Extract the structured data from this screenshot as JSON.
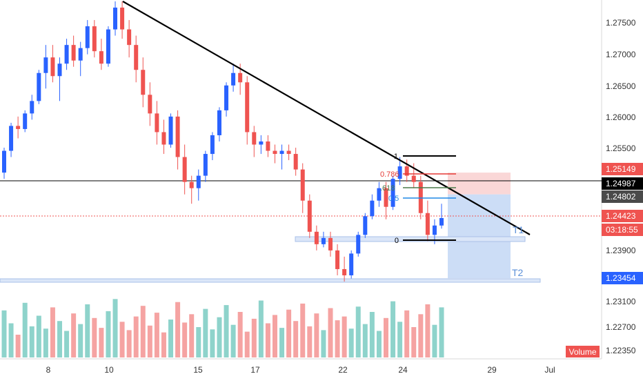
{
  "chart_data": {
    "type": "candlestick",
    "instrument_note": "",
    "colors": {
      "up": "#26a69a",
      "down": "#ef5350",
      "up_candle": "#2962ff",
      "down_candle": "#ef5350",
      "volume_up": "#8ed3cb",
      "volume_down": "#f5a3a2",
      "trendline": "#000000",
      "fib_0": "#000000",
      "fib_05": "#1e88e5",
      "fib_618": "#4a7a4a",
      "fib_786": "#e53935",
      "fib_1": "#000000",
      "target_zone": "#c7d9f5",
      "risk_zone": "#f9d3d3",
      "support_band": "#dbe6f8"
    },
    "x_ticks": [
      "8",
      "10",
      "15",
      "17",
      "22",
      "24",
      "29",
      "Jul"
    ],
    "y_ticks": [
      "1.27500",
      "1.27000",
      "1.26500",
      "1.26000",
      "1.25500",
      "1.23900",
      "1.23100",
      "1.22700",
      "1.22350"
    ],
    "ylim": [
      1.2215,
      1.2782
    ],
    "price_labels": [
      {
        "text": "1.25149",
        "value": 1.25149,
        "color": "#ef5350",
        "textColor": "#ffffff"
      },
      {
        "text": "1.24987",
        "value": 1.24987,
        "color": "#000000",
        "textColor": "#ffffff"
      },
      {
        "text": "1.24802",
        "value": 1.24802,
        "color": "#4a4a4a",
        "textColor": "#ffffff"
      },
      {
        "text": "1.24423",
        "value": 1.24423,
        "color": "#ef5350",
        "textColor": "#ffffff"
      },
      {
        "text": "03:18:55",
        "value": 1.24265,
        "color": "#ef5350",
        "textColor": "#ffffff"
      },
      {
        "text": "1.23454",
        "value": 1.23454,
        "color": "#2962ff",
        "textColor": "#ffffff"
      }
    ],
    "fib_levels": [
      {
        "label": "1",
        "value": 1.2536
      },
      {
        "label": "0.786",
        "value": 1.2508
      },
      {
        "label": ".618",
        "value": 1.2493
      },
      {
        "label": "0.5",
        "value": 1.2477
      },
      {
        "label": "0",
        "value": 1.2401
      }
    ],
    "annotations": [
      {
        "text": "T1"
      },
      {
        "text": "T2"
      },
      {
        "text": "Volume"
      }
    ],
    "series": [
      {
        "name": "",
        "values": [
          [
            1.2515,
            1.2555,
            1.2505,
            1.255
          ],
          [
            1.255,
            1.2595,
            1.254,
            1.259
          ],
          [
            1.259,
            1.2605,
            1.257,
            1.2585
          ],
          [
            1.2585,
            1.2615,
            1.258,
            1.261
          ],
          [
            1.261,
            1.264,
            1.26,
            1.263
          ],
          [
            1.263,
            1.268,
            1.2625,
            1.2675
          ],
          [
            1.2675,
            1.272,
            1.265,
            1.27
          ],
          [
            1.27,
            1.272,
            1.266,
            1.267
          ],
          [
            1.267,
            1.27,
            1.263,
            1.269
          ],
          [
            1.269,
            1.273,
            1.268,
            1.272
          ],
          [
            1.272,
            1.2735,
            1.2685,
            1.2695
          ],
          [
            1.2695,
            1.2725,
            1.267,
            1.2715
          ],
          [
            1.2715,
            1.276,
            1.2705,
            1.275
          ],
          [
            1.275,
            1.276,
            1.27,
            1.271
          ],
          [
            1.271,
            1.273,
            1.268,
            1.269
          ],
          [
            1.269,
            1.275,
            1.2685,
            1.2745
          ],
          [
            1.2745,
            1.279,
            1.2735,
            1.278
          ],
          [
            1.278,
            1.279,
            1.273,
            1.2745
          ],
          [
            1.2745,
            1.276,
            1.27,
            1.272
          ],
          [
            1.272,
            1.2735,
            1.266,
            1.268
          ],
          [
            1.268,
            1.27,
            1.262,
            1.264
          ],
          [
            1.264,
            1.266,
            1.259,
            1.261
          ],
          [
            1.261,
            1.263,
            1.256,
            1.258
          ],
          [
            1.258,
            1.26,
            1.2545,
            1.256
          ],
          [
            1.256,
            1.261,
            1.2555,
            1.2605
          ],
          [
            1.2605,
            1.2615,
            1.252,
            1.254
          ],
          [
            1.254,
            1.256,
            1.248,
            1.25
          ],
          [
            1.25,
            1.251,
            1.2465,
            1.249
          ],
          [
            1.249,
            1.252,
            1.247,
            1.251
          ],
          [
            1.251,
            1.255,
            1.25,
            1.2545
          ],
          [
            1.2545,
            1.258,
            1.2535,
            1.2575
          ],
          [
            1.2575,
            1.262,
            1.2565,
            1.2615
          ],
          [
            1.2615,
            1.266,
            1.2605,
            1.2655
          ],
          [
            1.2655,
            1.269,
            1.2645,
            1.2675
          ],
          [
            1.2675,
            1.269,
            1.264,
            1.266
          ],
          [
            1.266,
            1.267,
            1.256,
            1.258
          ],
          [
            1.258,
            1.259,
            1.254,
            1.256
          ],
          [
            1.256,
            1.2575,
            1.2545,
            1.2565
          ],
          [
            1.2565,
            1.2575,
            1.254,
            1.255
          ],
          [
            1.255,
            1.256,
            1.253,
            1.2545
          ],
          [
            1.2545,
            1.256,
            1.252,
            1.255
          ],
          [
            1.255,
            1.256,
            1.2535,
            1.2545
          ],
          [
            1.2545,
            1.2555,
            1.251,
            1.252
          ],
          [
            1.252,
            1.253,
            1.245,
            1.247
          ],
          [
            1.247,
            1.248,
            1.241,
            1.242
          ],
          [
            1.242,
            1.243,
            1.239,
            1.24
          ],
          [
            1.24,
            1.242,
            1.2395,
            1.241
          ],
          [
            1.241,
            1.242,
            1.238,
            1.239
          ],
          [
            1.239,
            1.24,
            1.235,
            1.236
          ],
          [
            1.236,
            1.238,
            1.234,
            1.235
          ],
          [
            1.235,
            1.239,
            1.2345,
            1.2385
          ],
          [
            1.2385,
            1.242,
            1.238,
            1.2415
          ],
          [
            1.2415,
            1.245,
            1.241,
            1.2445
          ],
          [
            1.2445,
            1.248,
            1.244,
            1.247
          ],
          [
            1.247,
            1.25,
            1.246,
            1.249
          ],
          [
            1.249,
            1.25,
            1.244,
            1.246
          ],
          [
            1.246,
            1.251,
            1.2455,
            1.2505
          ],
          [
            1.2505,
            1.254,
            1.2495,
            1.2525
          ],
          [
            1.2525,
            1.2536,
            1.25,
            1.251
          ],
          [
            1.251,
            1.253,
            1.249,
            1.25
          ],
          [
            1.25,
            1.251,
            1.244,
            1.245
          ],
          [
            1.245,
            1.247,
            1.2405,
            1.2415
          ],
          [
            1.2415,
            1.244,
            1.24,
            1.243
          ],
          [
            1.243,
            1.2465,
            1.2425,
            1.2442
          ]
        ]
      },
      {
        "name": "Volume",
        "values": [
          0.62,
          0.45,
          0.3,
          0.72,
          0.41,
          0.55,
          0.38,
          0.66,
          0.48,
          0.35,
          0.58,
          0.44,
          0.7,
          0.52,
          0.39,
          0.61,
          0.77,
          0.47,
          0.36,
          0.54,
          0.68,
          0.42,
          0.59,
          0.33,
          0.5,
          0.73,
          0.46,
          0.57,
          0.4,
          0.64,
          0.37,
          0.53,
          0.69,
          0.43,
          0.6,
          0.34,
          0.51,
          0.75,
          0.45,
          0.56,
          0.39,
          0.63,
          0.48,
          0.71,
          0.41,
          0.58,
          0.36,
          0.65,
          0.49,
          0.54,
          0.38,
          0.67,
          0.44,
          0.6,
          0.35,
          0.52,
          0.74,
          0.47,
          0.62,
          0.4,
          0.57,
          0.7,
          0.43,
          0.66
        ]
      }
    ]
  }
}
